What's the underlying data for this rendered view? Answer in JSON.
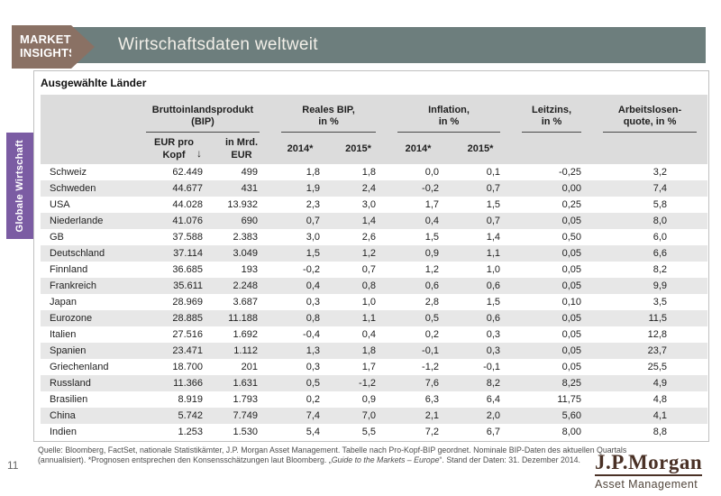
{
  "header": {
    "kicker_line1": "MARKET",
    "kicker_line2": "INSIGHTS",
    "title": "Wirtschaftsdaten weltweit"
  },
  "sidebar": {
    "tab": "Globale Wirtschaft"
  },
  "section_title": "Ausgewählte Länder",
  "table": {
    "group_headers": [
      {
        "label": "Bruttoinlandsprodukt\n(BIP)"
      },
      {
        "label": "Reales BIP,\nin %"
      },
      {
        "label": "Inflation,\nin %"
      },
      {
        "label": "Leitzins,\nin %"
      },
      {
        "label": "Arbeitslosen-\nquote, in %"
      }
    ],
    "sort_icon": "↓",
    "sub_headers": [
      "",
      "EUR pro\nKopf",
      "in Mrd.\nEUR",
      "2014*",
      "2015*",
      "2014*",
      "2015*",
      "",
      ""
    ],
    "rows": [
      {
        "country": "Schweiz",
        "values": [
          "62.449",
          "499",
          "1,8",
          "1,8",
          "0,0",
          "0,1",
          "-0,25",
          "3,2",
          ""
        ]
      },
      {
        "country": "Schweden",
        "values": [
          "44.677",
          "431",
          "1,9",
          "2,4",
          "-0,2",
          "0,7",
          "0,00",
          "7,4",
          ""
        ]
      },
      {
        "country": "USA",
        "values": [
          "44.028",
          "13.932",
          "2,3",
          "3,0",
          "1,7",
          "1,5",
          "0,25",
          "5,8",
          ""
        ]
      },
      {
        "country": "Niederlande",
        "values": [
          "41.076",
          "690",
          "0,7",
          "1,4",
          "0,4",
          "0,7",
          "0,05",
          "8,0",
          ""
        ]
      },
      {
        "country": "GB",
        "values": [
          "37.588",
          "2.383",
          "3,0",
          "2,6",
          "1,5",
          "1,4",
          "0,50",
          "6,0",
          ""
        ]
      },
      {
        "country": "Deutschland",
        "values": [
          "37.114",
          "3.049",
          "1,5",
          "1,2",
          "0,9",
          "1,1",
          "0,05",
          "6,6",
          ""
        ]
      },
      {
        "country": "Finnland",
        "values": [
          "36.685",
          "193",
          "-0,2",
          "0,7",
          "1,2",
          "1,0",
          "0,05",
          "8,2",
          ""
        ]
      },
      {
        "country": "Frankreich",
        "values": [
          "35.611",
          "2.248",
          "0,4",
          "0,8",
          "0,6",
          "0,6",
          "0,05",
          "9,9",
          ""
        ]
      },
      {
        "country": "Japan",
        "values": [
          "28.969",
          "3.687",
          "0,3",
          "1,0",
          "2,8",
          "1,5",
          "0,10",
          "3,5",
          ""
        ]
      },
      {
        "country": "Eurozone",
        "values": [
          "28.885",
          "11.188",
          "0,8",
          "1,1",
          "0,5",
          "0,6",
          "0,05",
          "11,5",
          ""
        ]
      },
      {
        "country": "Italien",
        "values": [
          "27.516",
          "1.692",
          "-0,4",
          "0,4",
          "0,2",
          "0,3",
          "0,05",
          "12,8",
          ""
        ]
      },
      {
        "country": "Spanien",
        "values": [
          "23.471",
          "1.112",
          "1,3",
          "1,8",
          "-0,1",
          "0,3",
          "0,05",
          "23,7",
          ""
        ]
      },
      {
        "country": "Griechenland",
        "values": [
          "18.700",
          "201",
          "0,3",
          "1,7",
          "-1,2",
          "-0,1",
          "0,05",
          "25,5",
          ""
        ]
      },
      {
        "country": "Russland",
        "values": [
          "11.366",
          "1.631",
          "0,5",
          "-1,2",
          "7,6",
          "8,2",
          "8,25",
          "4,9",
          ""
        ]
      },
      {
        "country": "Brasilien",
        "values": [
          "8.919",
          "1.793",
          "0,2",
          "0,9",
          "6,3",
          "6,4",
          "11,75",
          "4,8",
          ""
        ]
      },
      {
        "country": "China",
        "values": [
          "5.742",
          "7.749",
          "7,4",
          "7,0",
          "2,1",
          "2,0",
          "5,60",
          "4,1",
          ""
        ]
      },
      {
        "country": "Indien",
        "values": [
          "1.253",
          "1.530",
          "5,4",
          "5,5",
          "7,2",
          "6,7",
          "8,00",
          "8,8",
          ""
        ]
      }
    ]
  },
  "footer": {
    "source_line1": "Quelle: Bloomberg, FactSet, nationale Statistikämter, J.P. Morgan Asset Management. Tabelle nach Pro-Kopf-BIP geordnet. Nominale BIP-Daten des aktuellen Quartals",
    "source_line2_pre": "(annualisiert). *Prognosen entsprechen den Konsensschätzungen laut Bloomberg. „",
    "source_line2_italic": "Guide to the Markets – Europe",
    "source_line2_post": "“. Stand der Daten: 31. Dezember 2014.",
    "page_number": "11",
    "logo_line1": "J.P.Morgan",
    "logo_line2": "Asset Management"
  },
  "colors": {
    "banner": "#6d7e7d",
    "arrow": "#8a7164",
    "tab": "#7b5ca3",
    "header_bg": "#dcdcdc",
    "stripe": "#e7e7e7"
  }
}
